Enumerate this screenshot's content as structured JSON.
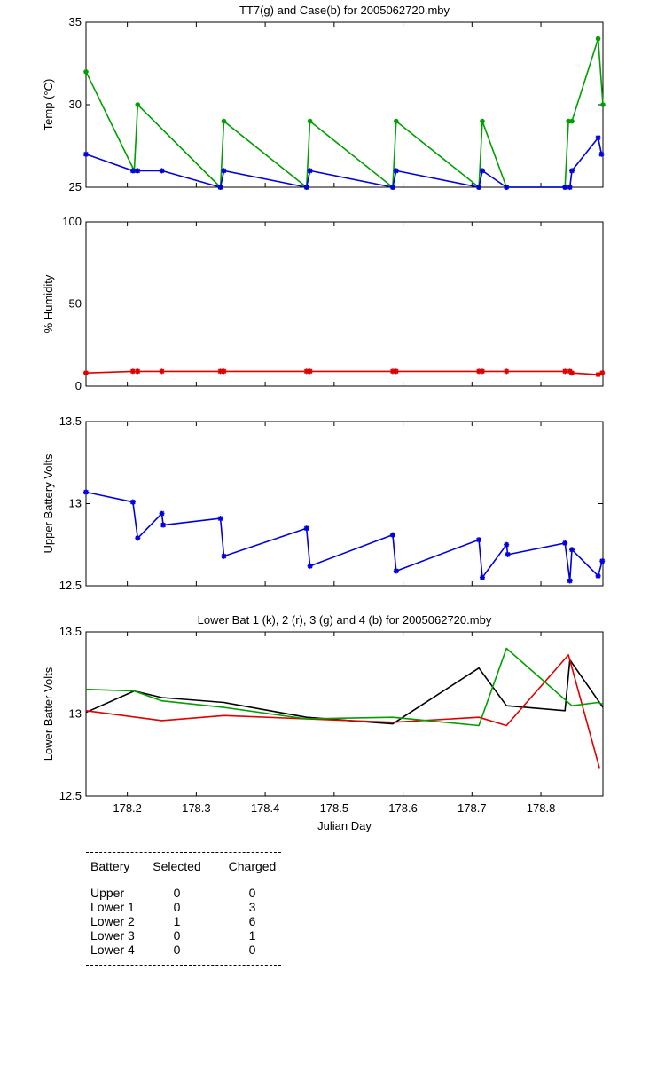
{
  "chart_data": [
    {
      "id": "temp",
      "type": "line",
      "title": "TT7(g) and Case(b) for 2005062720.mby",
      "xlabel": "",
      "ylabel": "Temp  (°C)",
      "xlim": [
        178.14,
        178.89
      ],
      "ylim": [
        25,
        35
      ],
      "yticks": [
        25,
        30,
        35
      ],
      "grid": false,
      "series": [
        {
          "color": "#00a000",
          "marker": "circle",
          "x": [
            178.14,
            178.21,
            178.215,
            178.335,
            178.34,
            178.46,
            178.465,
            178.585,
            178.59,
            178.71,
            178.715,
            178.75,
            178.835,
            178.84,
            178.845,
            178.883,
            178.89
          ],
          "y": [
            32,
            26,
            30,
            25,
            29,
            25,
            29,
            25,
            29,
            25,
            29,
            25,
            25,
            29,
            29,
            34,
            30
          ]
        },
        {
          "color": "#0000e0",
          "marker": "star",
          "x": [
            178.14,
            178.208,
            178.215,
            178.25,
            178.335,
            178.34,
            178.46,
            178.465,
            178.585,
            178.59,
            178.71,
            178.715,
            178.75,
            178.835,
            178.842,
            178.845,
            178.883,
            178.888
          ],
          "y": [
            27,
            26,
            26,
            26,
            25,
            26,
            25,
            26,
            25,
            26,
            25,
            26,
            25,
            25,
            25,
            26,
            28,
            27
          ]
        }
      ]
    },
    {
      "id": "humidity",
      "type": "line",
      "title": "",
      "xlabel": "",
      "ylabel": "% Humidity",
      "xlim": [
        178.14,
        178.89
      ],
      "ylim": [
        0,
        100
      ],
      "yticks": [
        0,
        50,
        100
      ],
      "grid": false,
      "series": [
        {
          "color": "#e00000",
          "marker": "star",
          "x": [
            178.14,
            178.208,
            178.215,
            178.25,
            178.335,
            178.34,
            178.46,
            178.465,
            178.585,
            178.59,
            178.71,
            178.715,
            178.75,
            178.835,
            178.842,
            178.845,
            178.883,
            178.889
          ],
          "y": [
            8,
            9,
            9,
            9,
            9,
            9,
            9,
            9,
            9,
            9,
            9,
            9,
            9,
            9,
            9,
            8,
            7,
            8
          ]
        }
      ]
    },
    {
      "id": "upper",
      "type": "line",
      "title": "",
      "xlabel": "",
      "ylabel": "Upper Battery Volts",
      "xlim": [
        178.14,
        178.89
      ],
      "ylim": [
        12.5,
        13.5
      ],
      "yticks": [
        12.5,
        13,
        13.5
      ],
      "grid": false,
      "series": [
        {
          "color": "#0000e0",
          "marker": "star",
          "x": [
            178.14,
            178.208,
            178.215,
            178.25,
            178.252,
            178.335,
            178.34,
            178.46,
            178.465,
            178.585,
            178.59,
            178.71,
            178.715,
            178.75,
            178.752,
            178.835,
            178.842,
            178.845,
            178.883,
            178.889
          ],
          "y": [
            13.07,
            13.01,
            12.79,
            12.94,
            12.87,
            12.91,
            12.68,
            12.85,
            12.62,
            12.81,
            12.59,
            12.78,
            12.55,
            12.75,
            12.69,
            12.76,
            12.53,
            12.72,
            12.56,
            12.65
          ]
        }
      ]
    },
    {
      "id": "lower",
      "type": "line",
      "title": "Lower Bat 1 (k), 2 (r), 3 (g) and 4 (b) for 2005062720.mby",
      "xlabel": "Julian Day",
      "ylabel": "Lower Batter Volts",
      "xlim": [
        178.14,
        178.89
      ],
      "ylim": [
        12.5,
        13.5
      ],
      "yticks": [
        12.5,
        13,
        13.5
      ],
      "xticks": [
        178.2,
        178.3,
        178.4,
        178.5,
        178.6,
        178.7,
        178.8
      ],
      "xticklabels": [
        "178.2",
        "178.3",
        "178.4",
        "178.5",
        "178.6",
        "178.7",
        "178.8"
      ],
      "grid": false,
      "series": [
        {
          "color": "#000000",
          "marker": "none",
          "x": [
            178.14,
            178.21,
            178.25,
            178.34,
            178.46,
            178.585,
            178.71,
            178.75,
            178.835,
            178.842,
            178.89
          ],
          "y": [
            13.01,
            13.14,
            13.1,
            13.07,
            12.98,
            12.94,
            13.28,
            13.05,
            13.02,
            13.33,
            13.04
          ]
        },
        {
          "color": "#e00000",
          "marker": "none",
          "x": [
            178.14,
            178.25,
            178.34,
            178.46,
            178.585,
            178.71,
            178.75,
            178.84,
            178.885
          ],
          "y": [
            13.02,
            12.96,
            12.99,
            12.97,
            12.95,
            12.98,
            12.93,
            13.36,
            12.67
          ]
        },
        {
          "color": "#00a000",
          "marker": "none",
          "x": [
            178.14,
            178.21,
            178.25,
            178.34,
            178.46,
            178.585,
            178.71,
            178.75,
            178.845,
            178.883,
            178.889
          ],
          "y": [
            13.15,
            13.14,
            13.08,
            13.04,
            12.97,
            12.98,
            12.93,
            13.4,
            13.05,
            13.07,
            13.06
          ]
        }
      ]
    }
  ],
  "battery_table": {
    "headers": [
      "Battery",
      "Selected",
      "Charged"
    ],
    "rows": [
      [
        "Upper",
        "0",
        "0"
      ],
      [
        "Lower 1",
        "0",
        "3"
      ],
      [
        "Lower 2",
        "1",
        "6"
      ],
      [
        "Lower 3",
        "0",
        "1"
      ],
      [
        "Lower 4",
        "0",
        "0"
      ]
    ]
  }
}
